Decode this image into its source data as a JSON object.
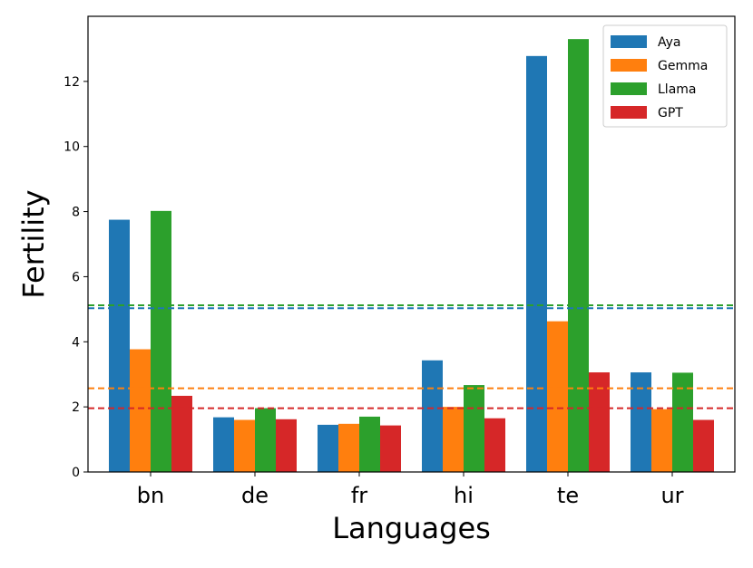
{
  "chart_data": {
    "type": "bar",
    "title": "",
    "xlabel": "Languages",
    "ylabel": "Fertility",
    "categories": [
      "bn",
      "de",
      "fr",
      "hi",
      "te",
      "ur"
    ],
    "ylim": [
      0,
      14
    ],
    "yticks": [
      0,
      2,
      4,
      6,
      8,
      10,
      12
    ],
    "grid": false,
    "legend_position": "top-right",
    "series": [
      {
        "name": "Aya",
        "color": "#1f77b4",
        "values": [
          7.75,
          1.68,
          1.45,
          3.43,
          12.78,
          3.06
        ]
      },
      {
        "name": "Gemma",
        "color": "#ff7f0e",
        "values": [
          3.77,
          1.6,
          1.48,
          2.0,
          4.63,
          1.93
        ]
      },
      {
        "name": "Llama",
        "color": "#2ca02c",
        "values": [
          8.02,
          1.96,
          1.7,
          2.67,
          13.3,
          3.05
        ]
      },
      {
        "name": "GPT",
        "color": "#d62728",
        "values": [
          2.34,
          1.62,
          1.43,
          1.65,
          3.06,
          1.6
        ]
      }
    ],
    "reference_lines": [
      {
        "series": "Aya",
        "color": "#1f77b4",
        "value": 5.03,
        "style": "dashed"
      },
      {
        "series": "Gemma",
        "color": "#ff7f0e",
        "value": 2.57,
        "style": "dashed"
      },
      {
        "series": "Llama",
        "color": "#2ca02c",
        "value": 5.12,
        "style": "dashed"
      },
      {
        "series": "GPT",
        "color": "#d62728",
        "value": 1.96,
        "style": "dashed"
      }
    ]
  }
}
